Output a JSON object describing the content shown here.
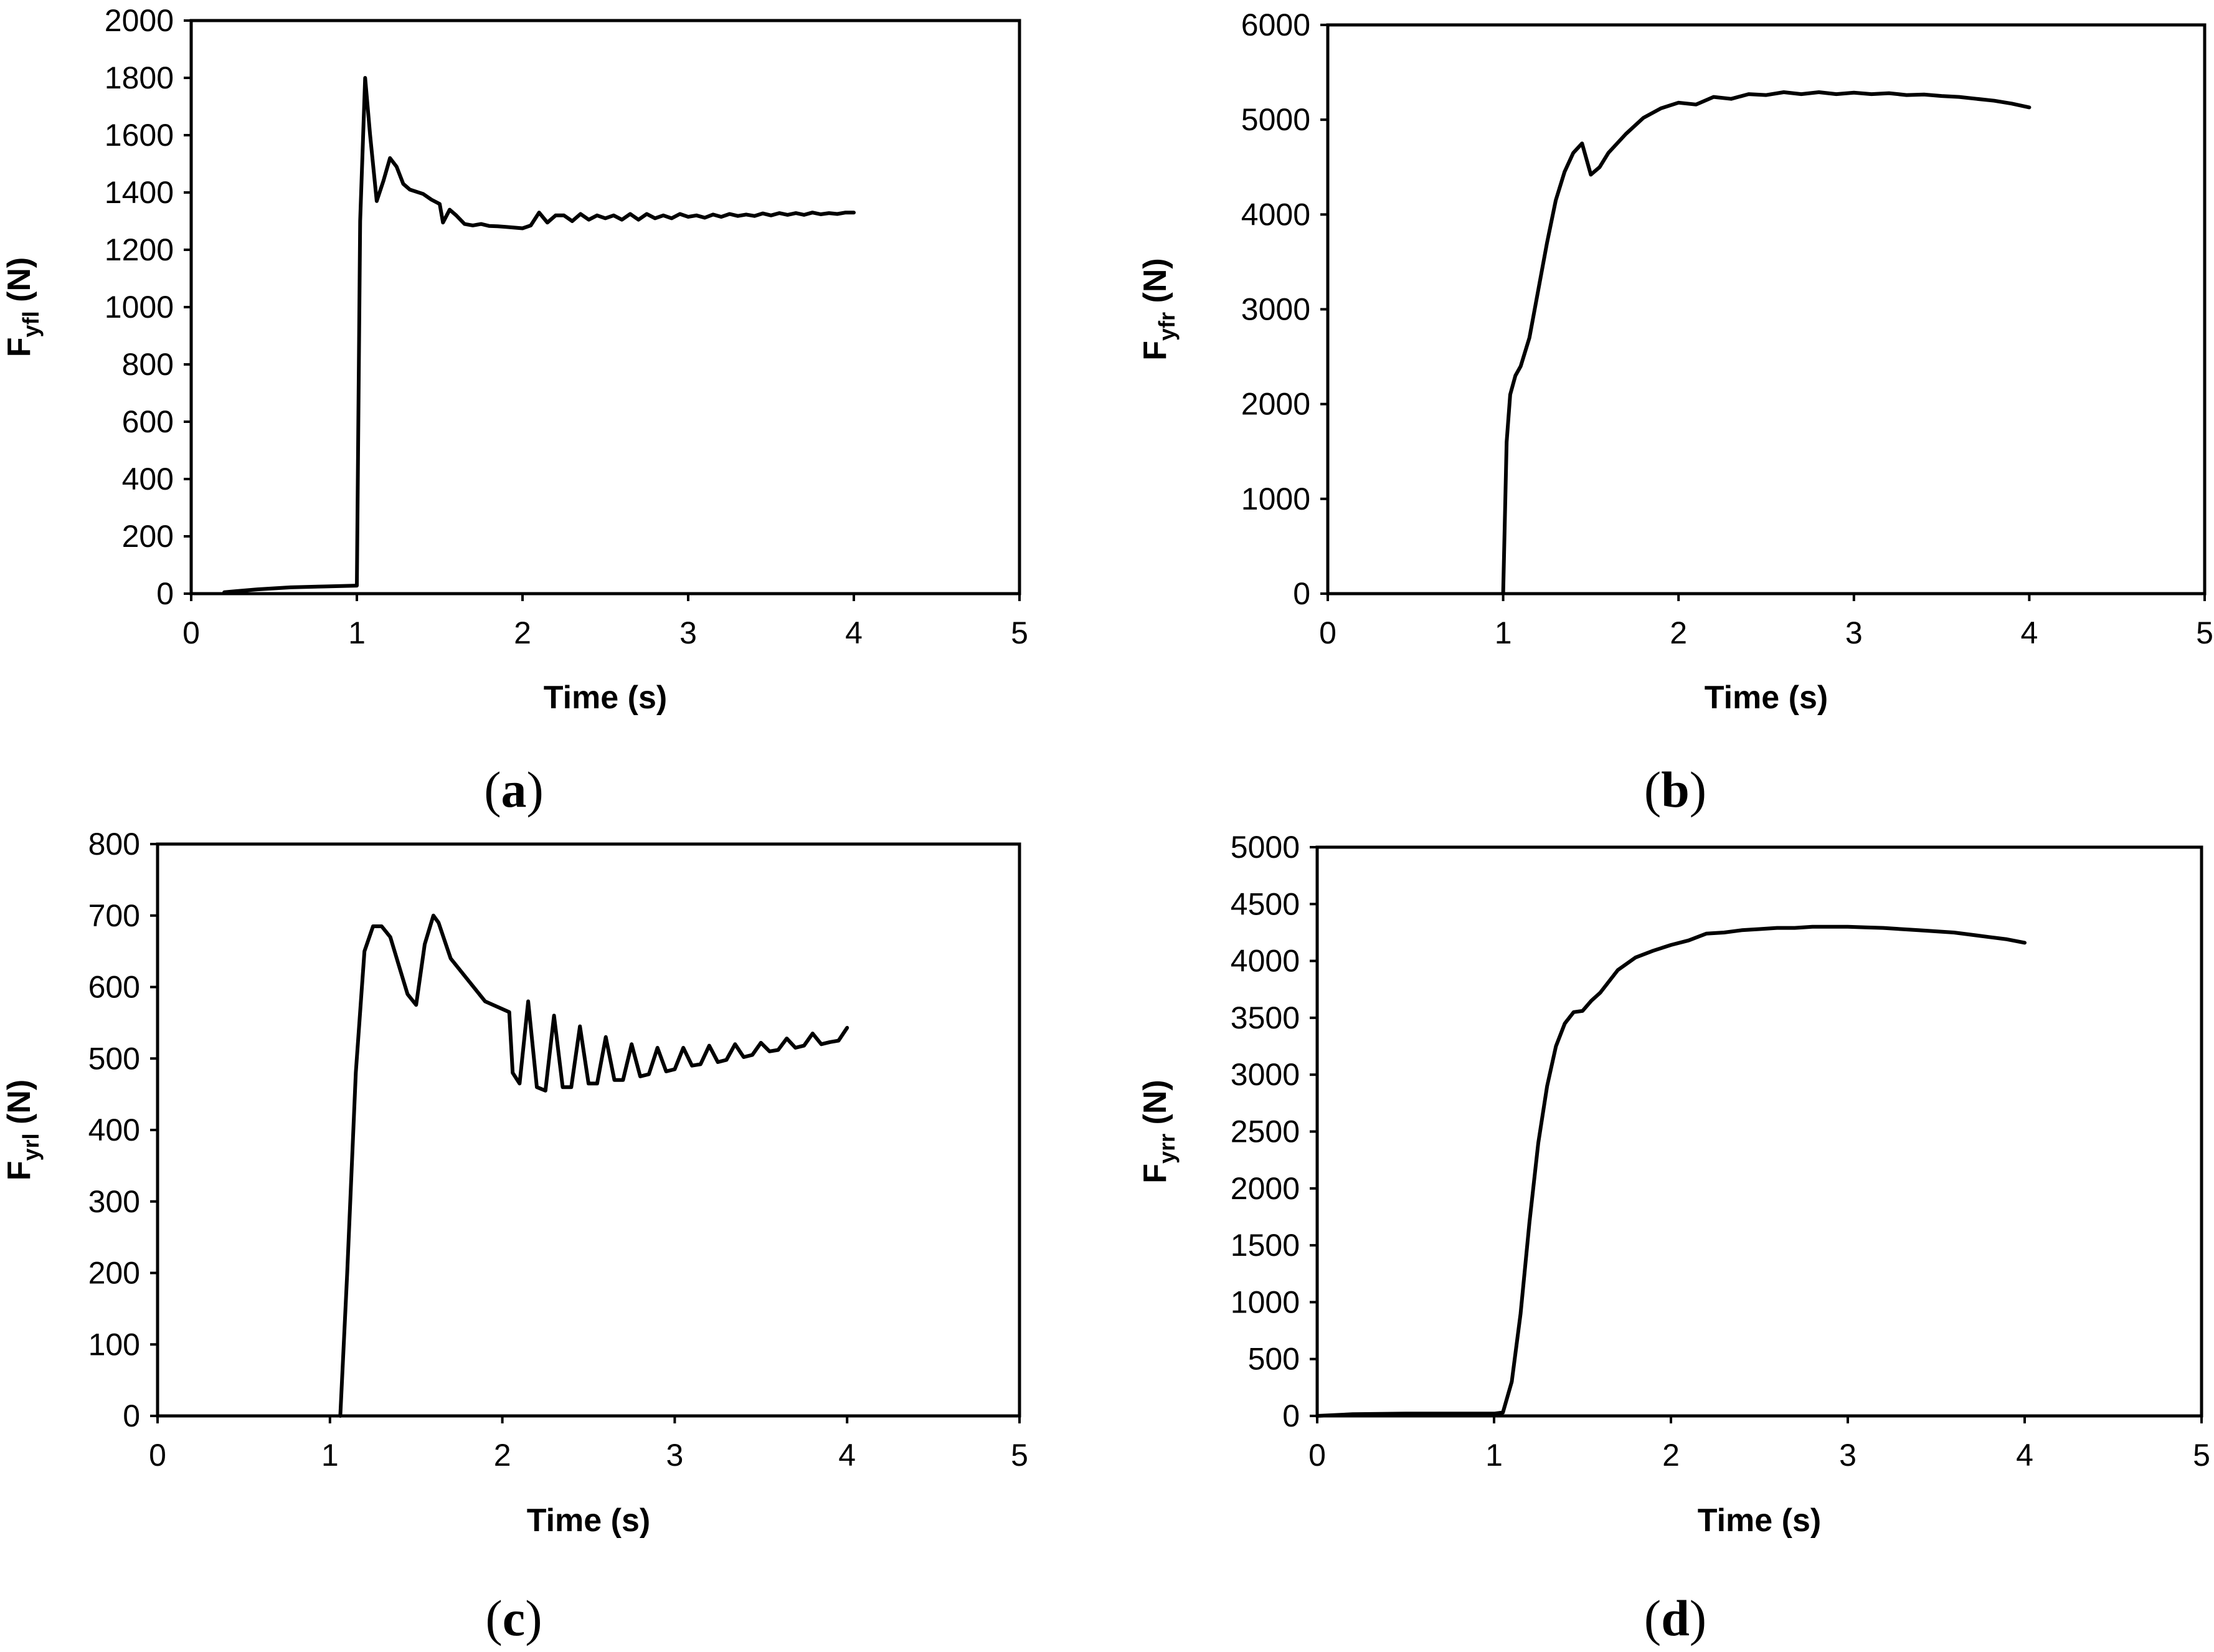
{
  "chart_data": [
    {
      "type": "line",
      "panel_label": "a",
      "xlabel": "Time (s)",
      "ylabel": {
        "base": "F",
        "sub": "yfl",
        "suffix": " (N)"
      },
      "xlim": [
        0,
        5
      ],
      "ylim": [
        0,
        2000
      ],
      "xticks": [
        0,
        1,
        2,
        3,
        4,
        5
      ],
      "yticks": [
        0,
        200,
        400,
        600,
        800,
        1000,
        1200,
        1400,
        1600,
        1800,
        2000
      ],
      "grid": false,
      "series": [
        {
          "x": [
            0.2,
            0.4,
            0.6,
            0.8,
            1.0,
            1.02,
            1.05,
            1.08,
            1.12,
            1.16,
            1.2,
            1.24,
            1.28,
            1.32,
            1.4,
            1.45,
            1.5,
            1.52,
            1.56,
            1.6,
            1.65,
            1.7,
            1.75,
            1.8,
            1.85,
            1.9,
            2.0,
            2.05,
            2.1,
            2.15,
            2.2,
            2.25,
            2.3,
            2.35,
            2.4,
            2.45,
            2.5,
            2.55,
            2.6,
            2.65,
            2.7,
            2.75,
            2.8,
            2.85,
            2.9,
            2.95,
            3.0,
            3.05,
            3.1,
            3.15,
            3.2,
            3.25,
            3.3,
            3.35,
            3.4,
            3.45,
            3.5,
            3.55,
            3.6,
            3.65,
            3.7,
            3.75,
            3.8,
            3.85,
            3.9,
            3.95,
            4.0
          ],
          "y": [
            5,
            15,
            22,
            25,
            28,
            1300,
            1800,
            1600,
            1370,
            1440,
            1520,
            1490,
            1430,
            1410,
            1395,
            1375,
            1360,
            1295,
            1340,
            1320,
            1290,
            1285,
            1290,
            1283,
            1282,
            1280,
            1275,
            1285,
            1330,
            1295,
            1320,
            1320,
            1300,
            1325,
            1305,
            1320,
            1310,
            1320,
            1305,
            1325,
            1305,
            1325,
            1310,
            1320,
            1310,
            1325,
            1315,
            1320,
            1312,
            1323,
            1315,
            1325,
            1318,
            1323,
            1318,
            1327,
            1320,
            1328,
            1322,
            1328,
            1322,
            1330,
            1324,
            1328,
            1325,
            1330,
            1330
          ]
        }
      ]
    },
    {
      "type": "line",
      "panel_label": "b",
      "xlabel": "Time (s)",
      "ylabel": {
        "base": "F",
        "sub": "yfr",
        "suffix": " (N)"
      },
      "xlim": [
        0,
        5
      ],
      "ylim": [
        0,
        6000
      ],
      "xticks": [
        0,
        1,
        2,
        3,
        4,
        5
      ],
      "yticks": [
        0,
        1000,
        2000,
        3000,
        4000,
        5000,
        6000
      ],
      "grid": false,
      "series": [
        {
          "x": [
            1.0,
            1.02,
            1.04,
            1.07,
            1.1,
            1.15,
            1.2,
            1.25,
            1.3,
            1.35,
            1.4,
            1.45,
            1.5,
            1.55,
            1.6,
            1.7,
            1.8,
            1.9,
            2.0,
            2.1,
            2.2,
            2.3,
            2.4,
            2.5,
            2.6,
            2.7,
            2.8,
            2.9,
            3.0,
            3.1,
            3.2,
            3.3,
            3.4,
            3.5,
            3.6,
            3.7,
            3.8,
            3.9,
            4.0
          ],
          "y": [
            0,
            1600,
            2100,
            2300,
            2400,
            2700,
            3200,
            3700,
            4150,
            4450,
            4650,
            4750,
            4420,
            4500,
            4650,
            4850,
            5020,
            5120,
            5180,
            5160,
            5240,
            5220,
            5270,
            5260,
            5290,
            5270,
            5290,
            5270,
            5285,
            5270,
            5280,
            5260,
            5265,
            5250,
            5240,
            5220,
            5200,
            5170,
            5130
          ]
        }
      ]
    },
    {
      "type": "line",
      "panel_label": "c",
      "xlabel": "Time (s)",
      "ylabel": {
        "base": "F",
        "sub": "yrl",
        "suffix": " (N)"
      },
      "xlim": [
        0,
        5
      ],
      "ylim": [
        0,
        800
      ],
      "xticks": [
        0,
        1,
        2,
        3,
        4,
        5
      ],
      "yticks": [
        0,
        100,
        200,
        300,
        400,
        500,
        600,
        700,
        800
      ],
      "grid": false,
      "series": [
        {
          "x": [
            1.06,
            1.1,
            1.15,
            1.2,
            1.25,
            1.3,
            1.35,
            1.4,
            1.45,
            1.5,
            1.55,
            1.6,
            1.63,
            1.7,
            1.8,
            1.9,
            2.04,
            2.06,
            2.1,
            2.15,
            2.2,
            2.25,
            2.3,
            2.35,
            2.4,
            2.45,
            2.5,
            2.55,
            2.6,
            2.65,
            2.7,
            2.75,
            2.8,
            2.85,
            2.9,
            2.95,
            3.0,
            3.05,
            3.1,
            3.15,
            3.2,
            3.25,
            3.3,
            3.35,
            3.4,
            3.45,
            3.5,
            3.55,
            3.6,
            3.65,
            3.7,
            3.75,
            3.8,
            3.85,
            3.9,
            3.95,
            4.0
          ],
          "y": [
            0,
            200,
            480,
            650,
            685,
            685,
            670,
            630,
            590,
            575,
            660,
            700,
            690,
            640,
            610,
            580,
            565,
            480,
            465,
            580,
            460,
            455,
            560,
            460,
            460,
            545,
            465,
            465,
            530,
            470,
            470,
            520,
            475,
            478,
            515,
            482,
            485,
            515,
            490,
            492,
            518,
            495,
            498,
            520,
            502,
            505,
            522,
            510,
            512,
            528,
            515,
            518,
            535,
            520,
            523,
            525,
            543
          ]
        }
      ]
    },
    {
      "type": "line",
      "panel_label": "d",
      "xlabel": "Time (s)",
      "ylabel": {
        "base": "F",
        "sub": "yrr",
        "suffix": " (N)"
      },
      "xlim": [
        0,
        5
      ],
      "ylim": [
        0,
        5000
      ],
      "xticks": [
        0,
        1,
        2,
        3,
        4,
        5
      ],
      "yticks": [
        0,
        500,
        1000,
        1500,
        2000,
        2500,
        3000,
        3500,
        4000,
        4500,
        5000
      ],
      "grid": false,
      "series": [
        {
          "x": [
            0.0,
            0.2,
            0.5,
            0.8,
            1.0,
            1.05,
            1.1,
            1.15,
            1.2,
            1.25,
            1.3,
            1.35,
            1.4,
            1.45,
            1.5,
            1.55,
            1.6,
            1.7,
            1.8,
            1.9,
            2.0,
            2.1,
            2.2,
            2.3,
            2.4,
            2.5,
            2.6,
            2.7,
            2.8,
            2.9,
            3.0,
            3.1,
            3.2,
            3.3,
            3.4,
            3.5,
            3.6,
            3.7,
            3.8,
            3.9,
            4.0
          ],
          "y": [
            0,
            15,
            20,
            20,
            20,
            30,
            300,
            900,
            1700,
            2400,
            2900,
            3250,
            3450,
            3550,
            3560,
            3650,
            3720,
            3920,
            4030,
            4090,
            4140,
            4180,
            4240,
            4250,
            4270,
            4280,
            4290,
            4290,
            4300,
            4300,
            4300,
            4295,
            4290,
            4280,
            4270,
            4260,
            4250,
            4230,
            4210,
            4190,
            4160
          ]
        }
      ]
    }
  ]
}
